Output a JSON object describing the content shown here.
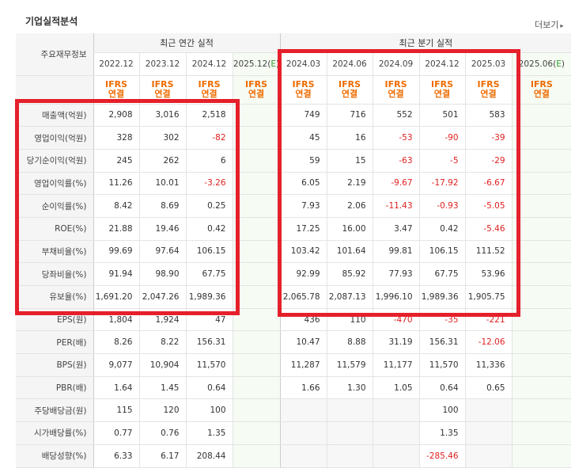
{
  "title": "기업실적분석",
  "more_label": "더보기",
  "header": {
    "corner_label": "주요재무정보",
    "annual_group": "최근 연간 실적",
    "quarter_group": "최근 분기 실적",
    "annual_dates": [
      "2022.12",
      "2023.12",
      "2024.12",
      "2025.12(E)"
    ],
    "quarter_dates": [
      "2024.03",
      "2024.06",
      "2024.09",
      "2024.12",
      "2025.03",
      "2025.06(E)"
    ],
    "ifrs_line1": "IFRS",
    "ifrs_line2": "연결"
  },
  "rows": [
    {
      "label": "매출액(억원)",
      "annual": [
        "2,908",
        "3,016",
        "2,518",
        ""
      ],
      "quarter": [
        "749",
        "716",
        "552",
        "501",
        "583",
        ""
      ]
    },
    {
      "label": "영업이익(억원)",
      "annual": [
        "328",
        "302",
        "-82",
        ""
      ],
      "quarter": [
        "45",
        "16",
        "-53",
        "-90",
        "-39",
        ""
      ]
    },
    {
      "label": "당기순이익(억원)",
      "annual": [
        "245",
        "262",
        "6",
        ""
      ],
      "quarter": [
        "59",
        "15",
        "-63",
        "-5",
        "-29",
        ""
      ]
    },
    {
      "label": "영업이익률(%)",
      "annual": [
        "11.26",
        "10.01",
        "-3.26",
        ""
      ],
      "quarter": [
        "6.05",
        "2.19",
        "-9.67",
        "-17.92",
        "-6.67",
        ""
      ]
    },
    {
      "label": "순이익률(%)",
      "annual": [
        "8.42",
        "8.69",
        "0.25",
        ""
      ],
      "quarter": [
        "7.93",
        "2.06",
        "-11.43",
        "-0.93",
        "-5.05",
        ""
      ]
    },
    {
      "label": "ROE(%)",
      "annual": [
        "21.88",
        "19.46",
        "0.42",
        ""
      ],
      "quarter": [
        "17.25",
        "16.00",
        "3.47",
        "0.42",
        "-5.46",
        ""
      ]
    },
    {
      "label": "부채비율(%)",
      "annual": [
        "99.69",
        "97.64",
        "106.15",
        ""
      ],
      "quarter": [
        "103.42",
        "101.64",
        "99.81",
        "106.15",
        "111.52",
        ""
      ]
    },
    {
      "label": "당좌비율(%)",
      "annual": [
        "91.94",
        "98.90",
        "67.75",
        ""
      ],
      "quarter": [
        "92.99",
        "85.92",
        "77.93",
        "67.75",
        "53.96",
        ""
      ]
    },
    {
      "label": "유보율(%)",
      "annual": [
        "1,691.20",
        "2,047.26",
        "1,989.36",
        ""
      ],
      "quarter": [
        "2,065.78",
        "2,087.13",
        "1,996.10",
        "1,989.36",
        "1,905.75",
        ""
      ]
    },
    {
      "label": "EPS(원)",
      "annual": [
        "1,804",
        "1,924",
        "47",
        ""
      ],
      "quarter": [
        "436",
        "110",
        "-470",
        "-35",
        "-221",
        ""
      ]
    },
    {
      "label": "PER(배)",
      "annual": [
        "8.26",
        "8.22",
        "156.31",
        ""
      ],
      "quarter": [
        "10.47",
        "8.88",
        "31.19",
        "156.31",
        "-12.06",
        ""
      ]
    },
    {
      "label": "BPS(원)",
      "annual": [
        "9,077",
        "10,904",
        "11,570",
        ""
      ],
      "quarter": [
        "11,287",
        "11,579",
        "11,177",
        "11,570",
        "11,336",
        ""
      ]
    },
    {
      "label": "PBR(배)",
      "annual": [
        "1.64",
        "1.45",
        "0.64",
        ""
      ],
      "quarter": [
        "1.66",
        "1.30",
        "1.05",
        "0.64",
        "0.65",
        ""
      ]
    },
    {
      "label": "주당배당금(원)",
      "annual": [
        "115",
        "120",
        "100",
        ""
      ],
      "quarter": [
        "",
        "",
        "",
        "100",
        "",
        ""
      ]
    },
    {
      "label": "시가배당률(%)",
      "annual": [
        "0.77",
        "0.76",
        "1.35",
        ""
      ],
      "quarter": [
        "",
        "",
        "",
        "1.35",
        "",
        ""
      ]
    },
    {
      "label": "배당성향(%)",
      "annual": [
        "6.33",
        "6.17",
        "208.44",
        ""
      ],
      "quarter": [
        "",
        "",
        "",
        "-285.46",
        "",
        ""
      ]
    }
  ],
  "colors": {
    "negative": "#e02020",
    "ifrs": "#ee6b00",
    "highlight_box": "#e5202b",
    "estimate_marker": "#2e9e2e"
  }
}
